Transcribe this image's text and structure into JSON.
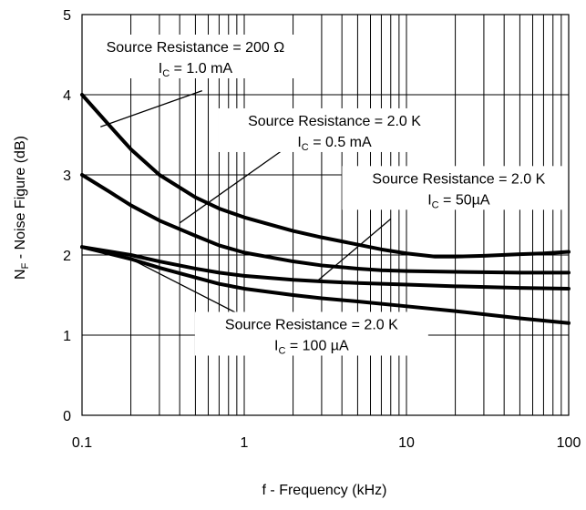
{
  "chart_data": {
    "type": "line",
    "xlabel": "f - Frequency (kHz)",
    "ylabel_main": "N",
    "ylabel_sub": "F",
    "ylabel_rest": " - Noise Figure (dB)",
    "x_scale": "log",
    "xlim": [
      0.1,
      100
    ],
    "ylim": [
      0,
      5
    ],
    "grid": true,
    "x_ticks": [
      0.1,
      1,
      10,
      100
    ],
    "x_tick_labels": [
      "0.1",
      "1",
      "10",
      "100"
    ],
    "y_ticks": [
      0,
      1,
      2,
      3,
      4,
      5
    ],
    "y_tick_labels": [
      "0",
      "1",
      "2",
      "3",
      "4",
      "5"
    ],
    "series": [
      {
        "x": [
          0.1,
          0.15,
          0.2,
          0.3,
          0.5,
          0.7,
          1,
          2,
          3,
          5,
          7,
          10,
          15,
          20,
          30,
          50,
          70,
          100
        ],
        "y": [
          4.0,
          3.6,
          3.32,
          3.0,
          2.72,
          2.58,
          2.47,
          2.3,
          2.22,
          2.13,
          2.07,
          2.02,
          1.98,
          1.98,
          1.99,
          2.01,
          2.02,
          2.04
        ]
      },
      {
        "x": [
          0.1,
          0.15,
          0.2,
          0.3,
          0.5,
          0.7,
          1,
          2,
          3,
          5,
          7,
          10,
          20,
          50,
          100
        ],
        "y": [
          3.0,
          2.78,
          2.62,
          2.43,
          2.24,
          2.12,
          2.03,
          1.92,
          1.87,
          1.83,
          1.81,
          1.8,
          1.79,
          1.78,
          1.78
        ]
      },
      {
        "x": [
          0.1,
          0.2,
          0.3,
          0.5,
          0.7,
          1,
          2,
          3,
          5,
          10,
          20,
          50,
          100
        ],
        "y": [
          2.1,
          2.0,
          1.92,
          1.83,
          1.78,
          1.74,
          1.69,
          1.67,
          1.65,
          1.63,
          1.61,
          1.59,
          1.58
        ]
      },
      {
        "x": [
          0.1,
          0.2,
          0.3,
          0.5,
          0.7,
          1,
          2,
          3,
          5,
          10,
          20,
          50,
          100
        ],
        "y": [
          2.1,
          1.95,
          1.84,
          1.72,
          1.64,
          1.58,
          1.5,
          1.46,
          1.42,
          1.36,
          1.3,
          1.21,
          1.15
        ]
      }
    ],
    "annotations": [
      {
        "line1": "Source Resistance = 200 Ω",
        "ic_prefix": "I",
        "ic_sub": "C",
        "ic_value": " = 1.0 mA",
        "text_x": 0.5,
        "text_y": 4.5,
        "bg_width": 275,
        "anchor_x": 0.13,
        "anchor_y": 3.6,
        "leader_end_x": 0.55,
        "leader_end_y": 4.05
      },
      {
        "line1": "Source Resistance = 2.0 K",
        "ic_prefix": "I",
        "ic_sub": "C",
        "ic_value": " = 0.5 mA",
        "text_x": 3.6,
        "text_y": 3.58,
        "bg_width": 255,
        "anchor_x": 0.4,
        "anchor_y": 2.4,
        "leader_end_x": 1.7,
        "leader_end_y": 3.3
      },
      {
        "line1": "Source Resistance = 2.0 K",
        "ic_prefix": "I",
        "ic_sub": "C",
        "ic_value": " = 50µA",
        "text_x": 21,
        "text_y": 2.86,
        "bg_width": 256,
        "anchor_x": 2.8,
        "anchor_y": 1.67,
        "leader_end_x": 8.0,
        "leader_end_y": 2.45
      },
      {
        "line1": "Source Resistance = 2.0 K",
        "ic_prefix": "I",
        "ic_sub": "C",
        "ic_value": " = 100 µA",
        "text_x": 2.6,
        "text_y": 1.04,
        "bg_width": 256,
        "anchor_x": 0.2,
        "anchor_y": 1.95,
        "leader_end_x": 0.95,
        "leader_end_y": 1.25
      }
    ]
  }
}
